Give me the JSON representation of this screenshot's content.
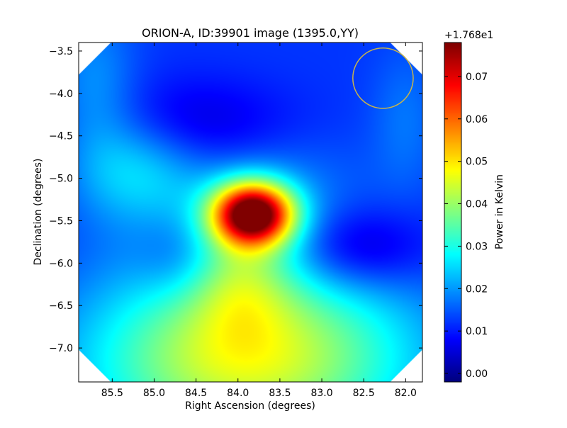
{
  "chart_data": {
    "type": "heatmap",
    "title": "ORION-A, ID:39901 image (1395.0,YY)",
    "xlabel": "Right Ascension (degrees)",
    "ylabel": "Declination (degrees)",
    "xlim": [
      85.9,
      81.8
    ],
    "ylim": [
      -7.4,
      -3.4
    ],
    "x_ticks": [
      85.5,
      85.0,
      84.5,
      84.0,
      83.5,
      83.0,
      82.5,
      82.0
    ],
    "x_tick_labels": [
      "85.5",
      "85.0",
      "84.5",
      "84.0",
      "83.5",
      "83.0",
      "82.5",
      "82.0"
    ],
    "y_ticks": [
      -3.5,
      -4.0,
      -4.5,
      -5.0,
      -5.5,
      -6.0,
      -6.5,
      -7.0
    ],
    "y_tick_labels": [
      "−3.5",
      "−4.0",
      "−4.5",
      "−5.0",
      "−5.5",
      "−6.0",
      "−6.5",
      "−7.0"
    ],
    "colormap": "jet",
    "colorbar": {
      "label": "Power in Kelvin",
      "offset_text": "+1.768e1",
      "range": [
        -0.002,
        0.078
      ],
      "ticks": [
        0.0,
        0.01,
        0.02,
        0.03,
        0.04,
        0.05,
        0.06,
        0.07
      ],
      "tick_labels": [
        "0.00",
        "0.01",
        "0.02",
        "0.03",
        "0.04",
        "0.05",
        "0.06",
        "0.07"
      ]
    },
    "baseline": 0.012,
    "features": [
      {
        "ra": 83.82,
        "dec": -5.42,
        "amplitude": 0.066,
        "sigma_ra": 0.34,
        "sigma_dec": 0.26
      },
      {
        "ra": 83.9,
        "dec": -5.2,
        "amplitude": 0.008,
        "sigma_ra": 0.9,
        "sigma_dec": 0.7
      },
      {
        "ra": 85.2,
        "dec": -4.85,
        "amplitude": 0.012,
        "sigma_ra": 0.5,
        "sigma_dec": 0.45
      },
      {
        "ra": 83.95,
        "dec": -6.2,
        "amplitude": 0.012,
        "sigma_ra": 0.45,
        "sigma_dec": 0.5
      },
      {
        "ra": 83.9,
        "dec": -7.25,
        "amplitude": 0.028,
        "sigma_ra": 1.4,
        "sigma_dec": 0.75
      },
      {
        "ra": 83.0,
        "dec": -6.6,
        "amplitude": 0.006,
        "sigma_ra": 0.9,
        "sigma_dec": 0.7
      },
      {
        "ra": 84.5,
        "dec": -6.6,
        "amplitude": 0.006,
        "sigma_ra": 0.9,
        "sigma_dec": 0.7
      },
      {
        "ra": 84.5,
        "dec": -4.4,
        "amplitude": -0.01,
        "sigma_ra": 0.9,
        "sigma_dec": 0.4
      },
      {
        "ra": 82.6,
        "dec": -5.85,
        "amplitude": -0.012,
        "sigma_ra": 0.6,
        "sigma_dec": 0.35
      },
      {
        "ra": 84.7,
        "dec": -5.95,
        "amplitude": -0.006,
        "sigma_ra": 0.35,
        "sigma_dec": 0.35
      },
      {
        "ra": 85.7,
        "dec": -4.0,
        "amplitude": 0.008,
        "sigma_ra": 0.35,
        "sigma_dec": 0.7
      },
      {
        "ra": 82.0,
        "dec": -4.3,
        "amplitude": 0.005,
        "sigma_ra": 0.3,
        "sigma_dec": 0.6
      }
    ],
    "beam_circle": {
      "ra": 82.27,
      "dec": -3.82,
      "radius_deg": 0.36,
      "color": "#c8b44a"
    },
    "colors": {
      "blank_corners": "#ffffff",
      "frame": "#000000"
    }
  }
}
